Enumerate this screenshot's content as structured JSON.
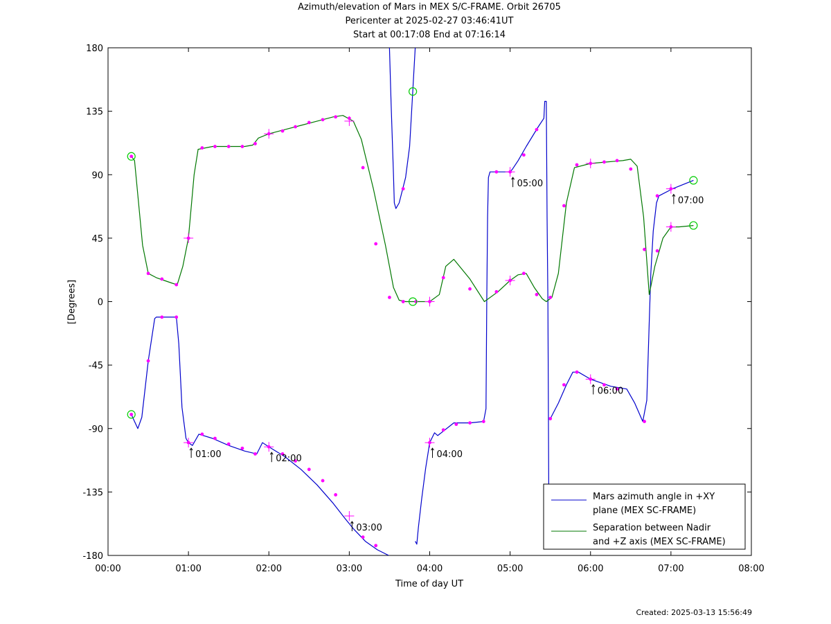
{
  "titles": {
    "line1": "Azimuth/elevation of Mars in MEX S/C-FRAME.  Orbit 26705",
    "line2": "Pericenter at 2025-02-27 03:46:41UT",
    "line3": "Start at 00:17:08 End at 07:16:14"
  },
  "footer": {
    "created": "Created: 2025-03-13 15:56:49"
  },
  "chart_data": {
    "type": "line",
    "title": "Azimuth/elevation of Mars in MEX S/C-FRAME.  Orbit 26705",
    "xlabel": "Time of day UT",
    "ylabel": "[Degrees]",
    "xlim": [
      0,
      8
    ],
    "ylim": [
      -180,
      180
    ],
    "x_unit": "hours",
    "xticks": [
      0,
      1,
      2,
      3,
      4,
      5,
      6,
      7,
      8
    ],
    "xtick_labels": [
      "00:00",
      "01:00",
      "02:00",
      "03:00",
      "04:00",
      "05:00",
      "06:00",
      "07:00",
      "08:00"
    ],
    "yticks": [
      -180,
      -135,
      -90,
      -45,
      0,
      45,
      90,
      135,
      180
    ],
    "ytick_labels": [
      "-180",
      "-135",
      "-90",
      "-45",
      "0",
      "45",
      "90",
      "135",
      "180"
    ],
    "grid": false,
    "legend_position": "bottom-right",
    "series": [
      {
        "name": "Mars azimuth angle in +XY plane (MEX SC-FRAME)",
        "legend_lines": [
          "Mars azimuth angle in +XY",
          "plane (MEX SC-FRAME)"
        ],
        "color": "#0000cc",
        "segments": [
          [
            [
              0.29,
              -80
            ],
            [
              0.33,
              -85
            ],
            [
              0.37,
              -90
            ],
            [
              0.42,
              -82
            ],
            [
              0.5,
              -42
            ],
            [
              0.58,
              -12
            ],
            [
              0.6,
              -11
            ],
            [
              0.85,
              -11
            ],
            [
              0.88,
              -30
            ],
            [
              0.92,
              -75
            ],
            [
              0.97,
              -97
            ],
            [
              1.0,
              -100
            ],
            [
              1.05,
              -102
            ],
            [
              1.13,
              -94
            ],
            [
              1.3,
              -97
            ],
            [
              1.5,
              -102
            ],
            [
              1.7,
              -106
            ],
            [
              1.85,
              -108
            ],
            [
              1.92,
              -100
            ],
            [
              2.0,
              -103
            ],
            [
              2.2,
              -110
            ],
            [
              2.4,
              -119
            ],
            [
              2.6,
              -130
            ],
            [
              2.8,
              -143
            ],
            [
              2.95,
              -154
            ],
            [
              3.05,
              -161
            ],
            [
              3.2,
              -170
            ],
            [
              3.35,
              -176
            ],
            [
              3.49,
              -180
            ]
          ],
          [
            [
              3.5,
              180
            ],
            [
              3.52,
              140
            ],
            [
              3.55,
              90
            ],
            [
              3.56,
              70
            ],
            [
              3.58,
              66
            ],
            [
              3.62,
              70
            ],
            [
              3.7,
              88
            ],
            [
              3.75,
              110
            ],
            [
              3.78,
              140
            ],
            [
              3.8,
              160
            ],
            [
              3.82,
              180
            ]
          ],
          [
            [
              3.82,
              -170
            ],
            [
              3.84,
              -172
            ],
            [
              3.86,
              -160
            ],
            [
              3.9,
              -140
            ],
            [
              3.95,
              -118
            ],
            [
              4.0,
              -100
            ],
            [
              4.06,
              -93
            ],
            [
              4.1,
              -95
            ],
            [
              4.3,
              -86
            ],
            [
              4.5,
              -86
            ],
            [
              4.67,
              -85
            ],
            [
              4.7,
              -76
            ],
            [
              4.71,
              0
            ],
            [
              4.72,
              60
            ],
            [
              4.73,
              88
            ],
            [
              4.75,
              92
            ],
            [
              4.85,
              92
            ],
            [
              5.0,
              92
            ],
            [
              5.03,
              94
            ],
            [
              5.1,
              100
            ],
            [
              5.2,
              110
            ],
            [
              5.35,
              124
            ],
            [
              5.42,
              130
            ],
            [
              5.43,
              142
            ],
            [
              5.45,
              142
            ],
            [
              5.46,
              60
            ],
            [
              5.47,
              0
            ],
            [
              5.48,
              -130
            ],
            [
              5.49,
              -137
            ]
          ],
          [
            [
              5.5,
              -83
            ],
            [
              5.6,
              -72
            ],
            [
              5.7,
              -59
            ],
            [
              5.78,
              -50
            ],
            [
              5.85,
              -50
            ],
            [
              6.0,
              -55
            ],
            [
              6.1,
              -57
            ],
            [
              6.25,
              -60
            ],
            [
              6.45,
              -62
            ],
            [
              6.55,
              -72
            ],
            [
              6.65,
              -85
            ],
            [
              6.7,
              -70
            ],
            [
              6.73,
              -15
            ],
            [
              6.75,
              20
            ],
            [
              6.78,
              50
            ],
            [
              6.82,
              70
            ],
            [
              6.85,
              75
            ],
            [
              7.02,
              80
            ],
            [
              7.28,
              86
            ]
          ]
        ]
      },
      {
        "name": "Separation between Nadir and +Z axis (MEX SC-FRAME)",
        "legend_lines": [
          "Separation between Nadir",
          "and +Z axis (MEX SC-FRAME)"
        ],
        "color": "#007700",
        "segments": [
          [
            [
              0.29,
              103
            ],
            [
              0.33,
              100
            ],
            [
              0.38,
              70
            ],
            [
              0.43,
              40
            ],
            [
              0.5,
              20
            ],
            [
              0.6,
              17
            ],
            [
              0.7,
              15
            ],
            [
              0.8,
              13
            ],
            [
              0.86,
              12
            ],
            [
              0.93,
              25
            ],
            [
              1.0,
              45
            ],
            [
              1.07,
              90
            ],
            [
              1.12,
              108
            ],
            [
              1.3,
              110
            ],
            [
              1.5,
              110
            ],
            [
              1.7,
              110
            ],
            [
              1.8,
              111
            ],
            [
              1.87,
              116
            ],
            [
              2.0,
              119
            ],
            [
              2.2,
              122
            ],
            [
              2.4,
              125
            ],
            [
              2.6,
              128
            ],
            [
              2.8,
              131
            ],
            [
              2.92,
              132
            ],
            [
              3.05,
              128
            ],
            [
              3.15,
              115
            ],
            [
              3.3,
              80
            ],
            [
              3.45,
              40
            ],
            [
              3.55,
              10
            ],
            [
              3.62,
              1
            ],
            [
              3.7,
              0
            ],
            [
              3.8,
              0
            ],
            [
              4.0,
              0
            ],
            [
              4.12,
              5
            ],
            [
              4.2,
              25
            ],
            [
              4.3,
              30
            ],
            [
              4.5,
              16
            ],
            [
              4.68,
              0
            ],
            [
              4.85,
              7
            ],
            [
              5.0,
              15
            ],
            [
              5.1,
              19
            ],
            [
              5.2,
              20
            ],
            [
              5.3,
              10
            ],
            [
              5.4,
              2
            ],
            [
              5.45,
              0
            ],
            [
              5.52,
              3
            ],
            [
              5.6,
              20
            ],
            [
              5.7,
              70
            ],
            [
              5.8,
              95
            ],
            [
              6.0,
              98
            ],
            [
              6.2,
              99
            ],
            [
              6.4,
              100
            ],
            [
              6.5,
              101
            ],
            [
              6.58,
              96
            ],
            [
              6.66,
              60
            ],
            [
              6.73,
              5
            ],
            [
              6.8,
              25
            ],
            [
              6.9,
              45
            ],
            [
              7.0,
              53
            ],
            [
              7.1,
              53
            ],
            [
              7.28,
              54
            ]
          ]
        ]
      }
    ],
    "sample_markers": {
      "color": "#ff00ff",
      "points": [
        [
          0.29,
          -80
        ],
        [
          0.5,
          -42
        ],
        [
          0.67,
          -11
        ],
        [
          0.85,
          -11
        ],
        [
          1.0,
          -100
        ],
        [
          1.17,
          -94
        ],
        [
          1.33,
          -97
        ],
        [
          1.5,
          -101
        ],
        [
          1.67,
          -104
        ],
        [
          1.83,
          -108
        ],
        [
          2.0,
          -103
        ],
        [
          2.17,
          -108
        ],
        [
          2.33,
          -113
        ],
        [
          2.5,
          -119
        ],
        [
          2.67,
          -127
        ],
        [
          2.83,
          -137
        ],
        [
          3.17,
          -167
        ],
        [
          3.33,
          -173
        ],
        [
          3.67,
          80
        ],
        [
          4.0,
          -100
        ],
        [
          4.17,
          -91
        ],
        [
          4.33,
          -87
        ],
        [
          4.5,
          -86
        ],
        [
          4.67,
          -85
        ],
        [
          4.83,
          92
        ],
        [
          5.0,
          92
        ],
        [
          5.17,
          104
        ],
        [
          5.33,
          122
        ],
        [
          5.5,
          -83
        ],
        [
          5.67,
          -59
        ],
        [
          5.83,
          -50
        ],
        [
          6.0,
          -55
        ],
        [
          6.17,
          -59
        ],
        [
          6.33,
          -62
        ],
        [
          6.67,
          -85
        ],
        [
          6.83,
          75
        ],
        [
          7.0,
          80
        ],
        [
          0.29,
          103
        ],
        [
          0.5,
          20
        ],
        [
          0.67,
          16
        ],
        [
          0.85,
          12
        ],
        [
          1.0,
          45
        ],
        [
          1.17,
          109
        ],
        [
          1.33,
          110
        ],
        [
          1.5,
          110
        ],
        [
          1.67,
          110
        ],
        [
          1.83,
          112
        ],
        [
          2.0,
          119
        ],
        [
          2.17,
          121
        ],
        [
          2.33,
          124
        ],
        [
          2.5,
          127
        ],
        [
          2.67,
          129
        ],
        [
          2.83,
          131
        ],
        [
          3.0,
          130
        ],
        [
          3.17,
          95
        ],
        [
          3.33,
          41
        ],
        [
          3.5,
          3
        ],
        [
          3.67,
          0
        ],
        [
          3.83,
          0
        ],
        [
          4.0,
          0
        ],
        [
          4.17,
          17
        ],
        [
          4.5,
          9
        ],
        [
          4.83,
          7
        ],
        [
          5.0,
          15
        ],
        [
          5.17,
          20
        ],
        [
          5.33,
          5
        ],
        [
          5.5,
          3
        ],
        [
          5.67,
          68
        ],
        [
          5.83,
          97
        ],
        [
          6.0,
          98
        ],
        [
          6.17,
          99
        ],
        [
          6.33,
          100
        ],
        [
          6.5,
          94
        ],
        [
          6.67,
          37
        ],
        [
          6.83,
          36
        ],
        [
          7.0,
          53
        ]
      ]
    },
    "hour_markers": {
      "points": [
        [
          1.0,
          -100
        ],
        [
          2.0,
          -103
        ],
        [
          3.0,
          -152
        ],
        [
          4.0,
          -100
        ],
        [
          5.0,
          92
        ],
        [
          6.0,
          -55
        ],
        [
          7.0,
          80
        ],
        [
          1.0,
          45
        ],
        [
          2.0,
          119
        ],
        [
          3.0,
          128
        ],
        [
          4.0,
          0
        ],
        [
          5.0,
          15
        ],
        [
          6.0,
          98
        ],
        [
          7.0,
          53
        ]
      ]
    },
    "endpoint_markers": {
      "color": "#00cc00",
      "points": [
        [
          0.29,
          103
        ],
        [
          0.29,
          -80
        ],
        [
          3.79,
          149
        ],
        [
          3.79,
          0
        ],
        [
          7.28,
          86
        ],
        [
          7.28,
          54
        ]
      ]
    },
    "annotations": [
      {
        "text": "01:00",
        "x": 1.0,
        "y": -100
      },
      {
        "text": "02:00",
        "x": 2.0,
        "y": -103
      },
      {
        "text": "03:00",
        "x": 3.0,
        "y": -152
      },
      {
        "text": "04:00",
        "x": 4.0,
        "y": -100
      },
      {
        "text": "05:00",
        "x": 5.0,
        "y": 92
      },
      {
        "text": "06:00",
        "x": 6.0,
        "y": -55
      },
      {
        "text": "07:00",
        "x": 7.0,
        "y": 80
      }
    ]
  }
}
